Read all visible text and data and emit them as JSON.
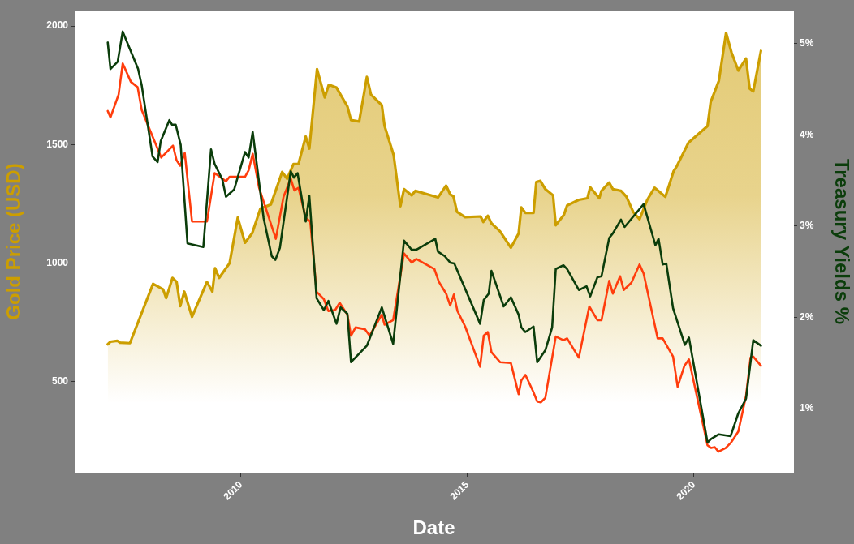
{
  "chart_data": {
    "type": "line",
    "xlabel": "Date",
    "ylabel": "Gold Price (USD)",
    "y2label": "Treasury Yields %",
    "xlim": [
      2006.33,
      2022.19
    ],
    "xticks": [
      2010,
      2015,
      2020
    ],
    "ylim": [
      117,
      2065
    ],
    "yticks": [
      500,
      1000,
      1500,
      2000
    ],
    "y2lim": [
      0.3,
      5.36
    ],
    "y2ticks": [
      {
        "value": 1,
        "label": "1%"
      },
      {
        "value": 2,
        "label": "2%"
      },
      {
        "value": 3,
        "label": "3%"
      },
      {
        "value": 4,
        "label": "4%"
      },
      {
        "value": 5,
        "label": "5%"
      }
    ],
    "series": [
      {
        "type": "area",
        "color": "#cc9e00",
        "x": [
          2007.06,
          2007.12,
          2007.27,
          2007.33,
          2007.55,
          2008.06,
          2008.28,
          2008.35,
          2008.49,
          2008.58,
          2008.66,
          2008.75,
          2008.92,
          2009.25,
          2009.37,
          2009.43,
          2009.52,
          2009.75,
          2009.93,
          2010.09,
          2010.25,
          2010.43,
          2010.66,
          2010.91,
          2011.02,
          2011.16,
          2011.27,
          2011.43,
          2011.51,
          2011.68,
          2011.85,
          2011.94,
          2012.11,
          2012.35,
          2012.43,
          2012.61,
          2012.78,
          2012.87,
          2013.11,
          2013.17,
          2013.37,
          2013.52,
          2013.6,
          2013.77,
          2013.85,
          2014.35,
          2014.53,
          2014.62,
          2014.69,
          2014.77,
          2014.95,
          2015.29,
          2015.35,
          2015.45,
          2015.53,
          2015.72,
          2015.96,
          2016.13,
          2016.19,
          2016.28,
          2016.46,
          2016.52,
          2016.61,
          2016.72,
          2016.89,
          2016.95,
          2017.13,
          2017.2,
          2017.46,
          2017.65,
          2017.71,
          2017.91,
          2017.96,
          2018.13,
          2018.21,
          2018.39,
          2018.51,
          2018.66,
          2018.8,
          2018.97,
          2019.13,
          2019.37,
          2019.55,
          2019.62,
          2019.88,
          2020.3,
          2020.37,
          2020.55,
          2020.71,
          2020.83,
          2020.98,
          2021.15,
          2021.23,
          2021.31,
          2021.48
        ],
        "values": [
          658,
          669,
          673,
          665,
          663,
          913,
          890,
          853,
          938,
          921,
          819,
          880,
          774,
          921,
          880,
          979,
          938,
          1000,
          1192,
          1086,
          1127,
          1230,
          1247,
          1384,
          1356,
          1418,
          1418,
          1534,
          1483,
          1818,
          1699,
          1752,
          1740,
          1661,
          1603,
          1597,
          1785,
          1711,
          1666,
          1579,
          1457,
          1240,
          1312,
          1286,
          1305,
          1277,
          1327,
          1290,
          1282,
          1216,
          1194,
          1197,
          1174,
          1200,
          1168,
          1134,
          1065,
          1125,
          1235,
          1212,
          1212,
          1342,
          1347,
          1312,
          1286,
          1160,
          1204,
          1243,
          1267,
          1274,
          1320,
          1274,
          1305,
          1340,
          1312,
          1305,
          1280,
          1216,
          1185,
          1267,
          1318,
          1280,
          1387,
          1408,
          1508,
          1578,
          1679,
          1768,
          1971,
          1888,
          1812,
          1863,
          1736,
          1724,
          1895
        ]
      },
      {
        "type": "line",
        "axis": "y2",
        "color": "#0b3d0b",
        "x": [
          2007.06,
          2007.12,
          2007.28,
          2007.39,
          2007.73,
          2007.81,
          2008.05,
          2008.16,
          2008.23,
          2008.42,
          2008.48,
          2008.56,
          2008.67,
          2008.82,
          2009.17,
          2009.34,
          2009.42,
          2009.59,
          2009.67,
          2009.85,
          2010.09,
          2010.17,
          2010.26,
          2010.5,
          2010.68,
          2010.76,
          2010.86,
          2011.1,
          2011.17,
          2011.25,
          2011.43,
          2011.51,
          2011.67,
          2011.83,
          2011.93,
          2012.11,
          2012.2,
          2012.35,
          2012.43,
          2012.78,
          2013.11,
          2013.36,
          2013.6,
          2013.77,
          2013.87,
          2014.29,
          2014.35,
          2014.5,
          2014.62,
          2014.71,
          2015.28,
          2015.36,
          2015.47,
          2015.53,
          2015.8,
          2015.96,
          2016.13,
          2016.19,
          2016.28,
          2016.46,
          2016.54,
          2016.72,
          2016.87,
          2016.95,
          2017.12,
          2017.2,
          2017.46,
          2017.63,
          2017.71,
          2017.87,
          2017.96,
          2018.13,
          2018.21,
          2018.39,
          2018.47,
          2018.89,
          2019.15,
          2019.22,
          2019.31,
          2019.39,
          2019.54,
          2019.8,
          2019.89,
          2020.3,
          2020.38,
          2020.55,
          2020.81,
          2020.98,
          2021.15,
          2021.31,
          2021.48
        ],
        "values": [
          5.01,
          4.72,
          4.8,
          5.13,
          4.72,
          4.54,
          3.76,
          3.7,
          3.93,
          4.16,
          4.11,
          4.11,
          3.89,
          2.81,
          2.77,
          3.84,
          3.68,
          3.51,
          3.32,
          3.4,
          3.81,
          3.75,
          4.03,
          3.09,
          2.67,
          2.63,
          2.76,
          3.6,
          3.53,
          3.58,
          3.05,
          3.33,
          2.21,
          2.08,
          2.18,
          1.93,
          2.11,
          2.04,
          1.51,
          1.69,
          2.11,
          1.71,
          2.84,
          2.74,
          2.74,
          2.86,
          2.72,
          2.67,
          2.6,
          2.59,
          1.93,
          2.19,
          2.26,
          2.51,
          2.12,
          2.22,
          2.03,
          1.89,
          1.84,
          1.9,
          1.51,
          1.64,
          1.89,
          2.53,
          2.57,
          2.53,
          2.3,
          2.34,
          2.23,
          2.44,
          2.45,
          2.87,
          2.92,
          3.07,
          2.99,
          3.24,
          2.79,
          2.86,
          2.58,
          2.59,
          2.1,
          1.7,
          1.78,
          0.63,
          0.67,
          0.72,
          0.7,
          0.95,
          1.11,
          1.75,
          1.69
        ]
      },
      {
        "type": "line",
        "axis": "y2",
        "color": "#ff3d0d",
        "x": [
          2007.06,
          2007.12,
          2007.3,
          2007.39,
          2007.57,
          2007.72,
          2007.81,
          2008.24,
          2008.5,
          2008.58,
          2008.66,
          2008.76,
          2008.92,
          2009.25,
          2009.42,
          2009.67,
          2009.75,
          2010.09,
          2010.17,
          2010.26,
          2010.4,
          2010.77,
          2010.94,
          2011.1,
          2011.18,
          2011.27,
          2011.43,
          2011.53,
          2011.67,
          2011.83,
          2011.93,
          2012.08,
          2012.18,
          2012.35,
          2012.43,
          2012.53,
          2012.74,
          2012.84,
          2013.11,
          2013.17,
          2013.36,
          2013.6,
          2013.77,
          2013.87,
          2014.27,
          2014.37,
          2014.53,
          2014.62,
          2014.7,
          2014.78,
          2014.95,
          2015.28,
          2015.36,
          2015.45,
          2015.53,
          2015.72,
          2015.96,
          2016.13,
          2016.19,
          2016.28,
          2016.45,
          2016.54,
          2016.62,
          2016.72,
          2016.95,
          2017.12,
          2017.2,
          2017.46,
          2017.69,
          2017.87,
          2017.96,
          2018.13,
          2018.21,
          2018.37,
          2018.45,
          2018.62,
          2018.8,
          2018.89,
          2019.2,
          2019.31,
          2019.54,
          2019.64,
          2019.79,
          2019.89,
          2020.3,
          2020.38,
          2020.46,
          2020.54,
          2020.7,
          2020.82,
          2020.98,
          2021.15,
          2021.25,
          2021.31,
          2021.48
        ],
        "values": [
          4.26,
          4.19,
          4.44,
          4.78,
          4.58,
          4.52,
          4.27,
          3.75,
          3.88,
          3.72,
          3.66,
          3.8,
          3.05,
          3.05,
          3.58,
          3.49,
          3.54,
          3.54,
          3.61,
          3.79,
          3.42,
          2.86,
          3.32,
          3.52,
          3.39,
          3.42,
          3.09,
          3.05,
          2.28,
          2.2,
          2.07,
          2.08,
          2.16,
          2.03,
          1.8,
          1.89,
          1.87,
          1.8,
          2.03,
          1.92,
          1.97,
          2.7,
          2.6,
          2.64,
          2.53,
          2.39,
          2.26,
          2.13,
          2.25,
          2.07,
          1.9,
          1.46,
          1.8,
          1.84,
          1.62,
          1.51,
          1.5,
          1.16,
          1.31,
          1.37,
          1.19,
          1.08,
          1.07,
          1.12,
          1.79,
          1.75,
          1.77,
          1.56,
          2.12,
          1.97,
          1.97,
          2.4,
          2.26,
          2.45,
          2.3,
          2.38,
          2.58,
          2.48,
          1.77,
          1.77,
          1.57,
          1.24,
          1.47,
          1.54,
          0.6,
          0.57,
          0.58,
          0.53,
          0.57,
          0.63,
          0.75,
          1.14,
          1.56,
          1.57,
          1.47
        ]
      }
    ]
  }
}
